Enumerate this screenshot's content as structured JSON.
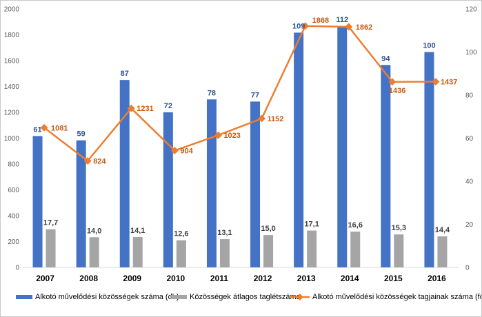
{
  "chart_data": {
    "type": "bar",
    "categories": [
      "2007",
      "2008",
      "2009",
      "2010",
      "2011",
      "2012",
      "2013",
      "2014",
      "2015",
      "2016"
    ],
    "series": [
      {
        "name": "Alkotó művelődési közösségek száma (db)",
        "kind": "bar",
        "axis": "right",
        "color": "#4472c4",
        "values": [
          61,
          59,
          87,
          72,
          78,
          77,
          109,
          112,
          94,
          100
        ],
        "labels": [
          "61",
          "59",
          "87",
          "72",
          "78",
          "77",
          "109",
          "112",
          "94",
          "100"
        ]
      },
      {
        "name": "Közösségek átlagos taglétszáma",
        "kind": "bar",
        "axis": "right",
        "color": "#a5a5a5",
        "values": [
          17.7,
          14.0,
          14.1,
          12.6,
          13.1,
          15.0,
          17.1,
          16.6,
          15.3,
          14.4
        ],
        "labels": [
          "17,7",
          "14,0",
          "14,1",
          "12,6",
          "13,1",
          "15,0",
          "17,1",
          "16,6",
          "15,3",
          "14,4"
        ]
      },
      {
        "name": "Alkotó művelődési közösségek tagjainak száma (fő)",
        "kind": "line",
        "axis": "left",
        "color": "#ed7d31",
        "values": [
          1081,
          824,
          1231,
          904,
          1023,
          1152,
          1868,
          1862,
          1436,
          1437
        ],
        "labels": [
          "1081",
          "824",
          "1231",
          "904",
          "1023",
          "1152",
          "1868",
          "1862",
          "1436",
          "1437"
        ]
      }
    ],
    "y_left": {
      "range": [
        0,
        2000
      ],
      "ticks": [
        "0",
        "200",
        "400",
        "600",
        "800",
        "1000",
        "1200",
        "1400",
        "1600",
        "1800",
        "2000"
      ]
    },
    "y_right": {
      "range": [
        0,
        120
      ],
      "ticks": [
        "0",
        "20",
        "40",
        "60",
        "80",
        "100",
        "120"
      ]
    },
    "grid": false,
    "legend": "bottom"
  }
}
